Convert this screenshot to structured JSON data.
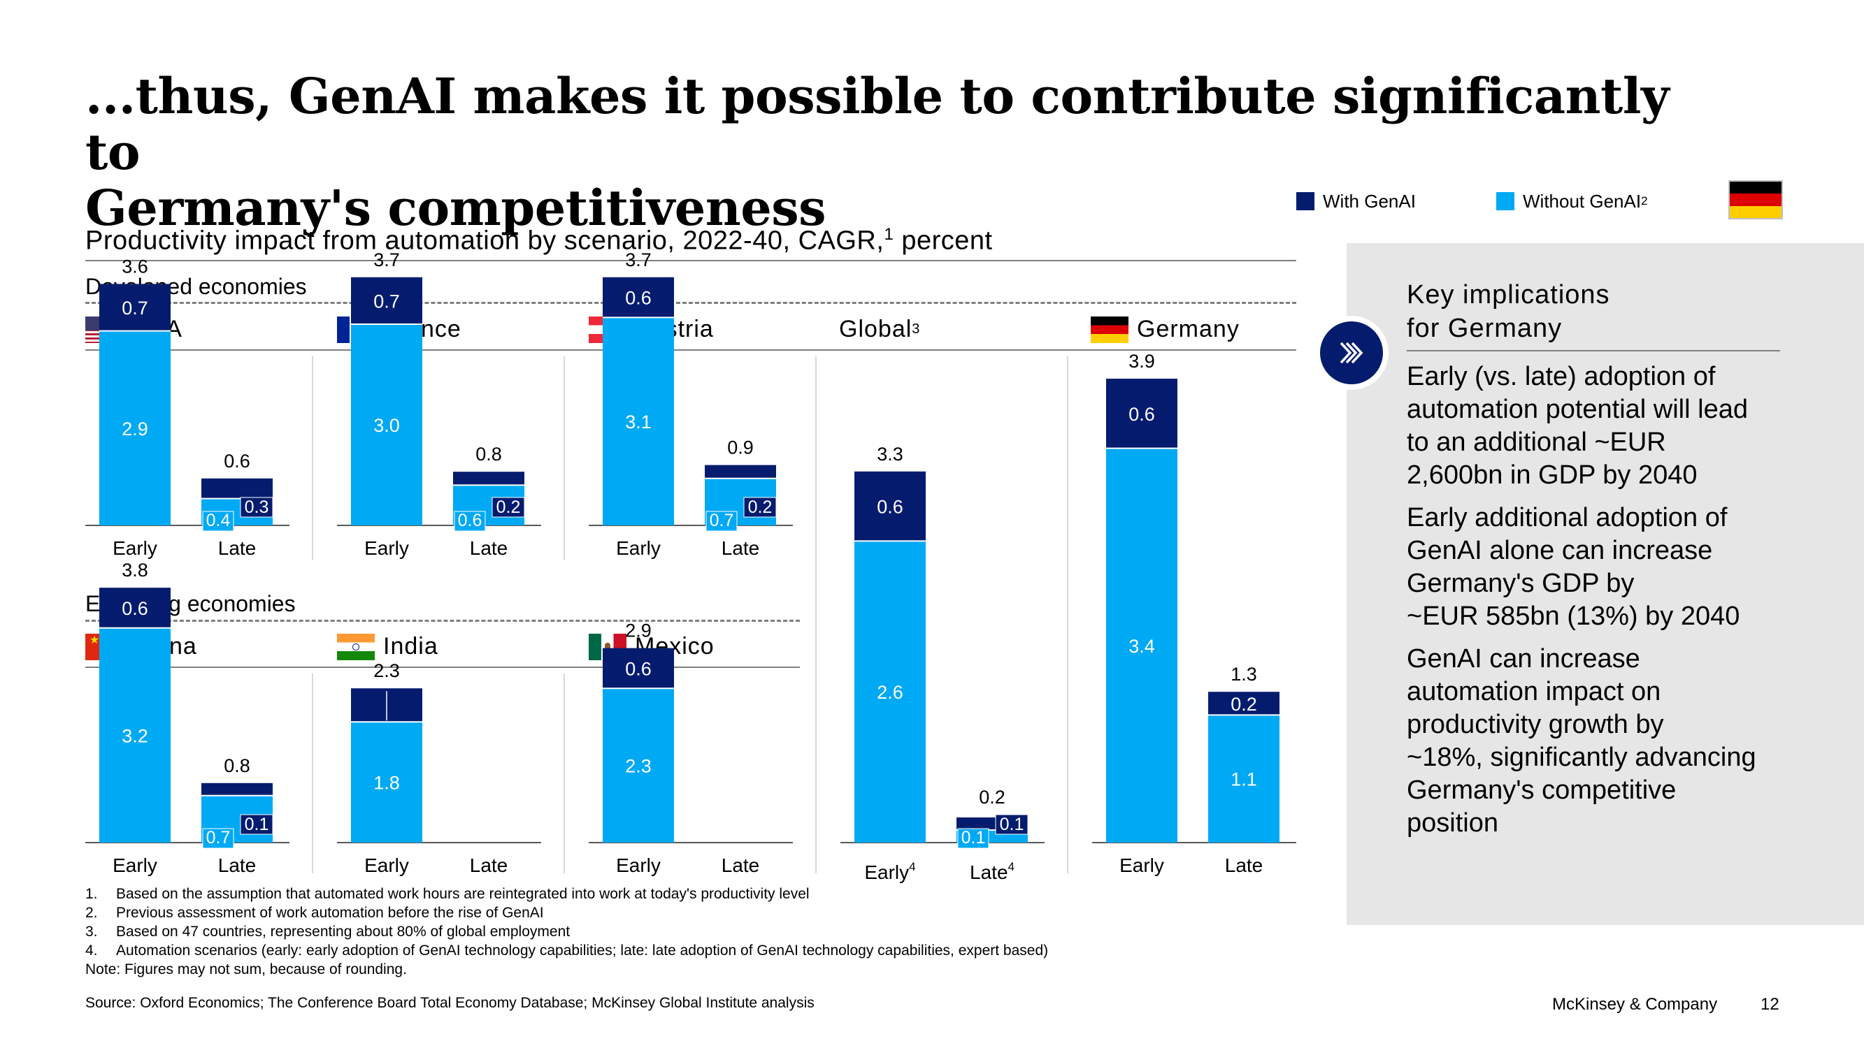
{
  "title": "...thus, GenAI makes it possible to contribute significantly to\nGermany's competitiveness",
  "subtitle": {
    "text": "Productivity impact from automation by scenario, 2022-40, CAGR,",
    "sup": "1",
    "suffix": " percent"
  },
  "legend": [
    {
      "label": "With GenAI",
      "sup": "",
      "color": "#051c6e"
    },
    {
      "label": "Without GenAI",
      "sup": "2",
      "color": "#00a9f4"
    }
  ],
  "sections": {
    "developed": "Developed economies",
    "emerging": "Emerging economies"
  },
  "countries": {
    "usa": "USA",
    "france": "France",
    "austria": "Austria",
    "global": "Global",
    "global_sup": "3",
    "germany": "Germany",
    "china": "China",
    "india": "India",
    "mexico": "Mexico"
  },
  "colors": {
    "with_genai": "#051c6e",
    "without_genai": "#00a9f4"
  },
  "chart_data": [
    {
      "type": "bar",
      "stacked": true,
      "title": "USA",
      "categories": [
        "Early",
        "Late"
      ],
      "series": [
        {
          "name": "Without GenAI",
          "values": [
            2.9,
            0.4
          ]
        },
        {
          "name": "With GenAI",
          "values": [
            0.7,
            0.3
          ]
        }
      ],
      "totals": [
        3.6,
        0.6
      ]
    },
    {
      "type": "bar",
      "stacked": true,
      "title": "France",
      "categories": [
        "Early",
        "Late"
      ],
      "series": [
        {
          "name": "Without GenAI",
          "values": [
            3.0,
            0.6
          ]
        },
        {
          "name": "With GenAI",
          "values": [
            0.7,
            0.2
          ]
        }
      ],
      "totals": [
        3.7,
        0.8
      ]
    },
    {
      "type": "bar",
      "stacked": true,
      "title": "Austria",
      "categories": [
        "Early",
        "Late"
      ],
      "series": [
        {
          "name": "Without GenAI",
          "values": [
            3.1,
            0.7
          ]
        },
        {
          "name": "With GenAI",
          "values": [
            0.6,
            0.2
          ]
        }
      ],
      "totals": [
        3.7,
        0.9
      ]
    },
    {
      "type": "bar",
      "stacked": true,
      "title": "China",
      "categories": [
        "Early",
        "Late"
      ],
      "series": [
        {
          "name": "Without GenAI",
          "values": [
            3.2,
            0.7
          ]
        },
        {
          "name": "With GenAI",
          "values": [
            0.6,
            0.1
          ]
        }
      ],
      "totals": [
        3.8,
        0.8
      ]
    },
    {
      "type": "bar",
      "stacked": true,
      "title": "India",
      "categories": [
        "Early",
        "Late"
      ],
      "series": [
        {
          "name": "Without GenAI",
          "values": [
            1.8,
            null
          ]
        },
        {
          "name": "With GenAI",
          "values": [
            0.5,
            null
          ]
        }
      ],
      "totals": [
        2.3,
        null
      ],
      "hide_value_labels": {
        "With GenAI": [
          true,
          false
        ]
      }
    },
    {
      "type": "bar",
      "stacked": true,
      "title": "Mexico",
      "categories": [
        "Early",
        "Late"
      ],
      "series": [
        {
          "name": "Without GenAI",
          "values": [
            2.3,
            null
          ]
        },
        {
          "name": "With GenAI",
          "values": [
            0.6,
            null
          ]
        }
      ],
      "totals": [
        2.9,
        null
      ]
    },
    {
      "type": "bar",
      "stacked": true,
      "title": "Global",
      "categories": [
        "Early",
        "Late"
      ],
      "category_sup": [
        "4",
        "4"
      ],
      "series": [
        {
          "name": "Without GenAI",
          "values": [
            2.6,
            0.1
          ]
        },
        {
          "name": "With GenAI",
          "values": [
            0.6,
            0.1
          ]
        }
      ],
      "totals": [
        3.3,
        0.2
      ]
    },
    {
      "type": "bar",
      "stacked": true,
      "title": "Germany",
      "categories": [
        "Early",
        "Late"
      ],
      "series": [
        {
          "name": "Without GenAI",
          "values": [
            3.4,
            1.1
          ]
        },
        {
          "name": "With GenAI",
          "values": [
            0.6,
            0.2
          ]
        }
      ],
      "totals": [
        3.9,
        1.3
      ]
    }
  ],
  "panel": {
    "title": "Key implications\nfor Germany",
    "points": [
      "Early (vs. late) adoption of\nautomation potential will lead\nto an additional ~EUR\n2,600bn in GDP by 2040",
      "Early additional adoption of\nGenAI alone can increase\nGermany's GDP by\n~EUR 585bn (13%) by 2040",
      "GenAI can increase\nautomation impact on\nproductivity growth by\n~18%, significantly advancing\nGermany's competitive\nposition"
    ]
  },
  "footnotes": [
    {
      "n": "1.",
      "text": "Based on the assumption that automated work hours are reintegrated into work at today's productivity level"
    },
    {
      "n": "2.",
      "text": "Previous assessment of work automation before the rise of GenAI"
    },
    {
      "n": "3.",
      "text": "Based on 47 countries, representing about 80% of global employment"
    },
    {
      "n": "4.",
      "text": "Automation scenarios (early: early adoption of GenAI technology capabilities; late: late adoption of GenAI technology capabilities, expert based)"
    }
  ],
  "note": "Note: Figures may not sum, because of rounding.",
  "source": "Source: Oxford Economics; The Conference Board Total Economy Database; McKinsey Global Institute analysis",
  "brand": "McKinsey & Company",
  "page_number": "12"
}
